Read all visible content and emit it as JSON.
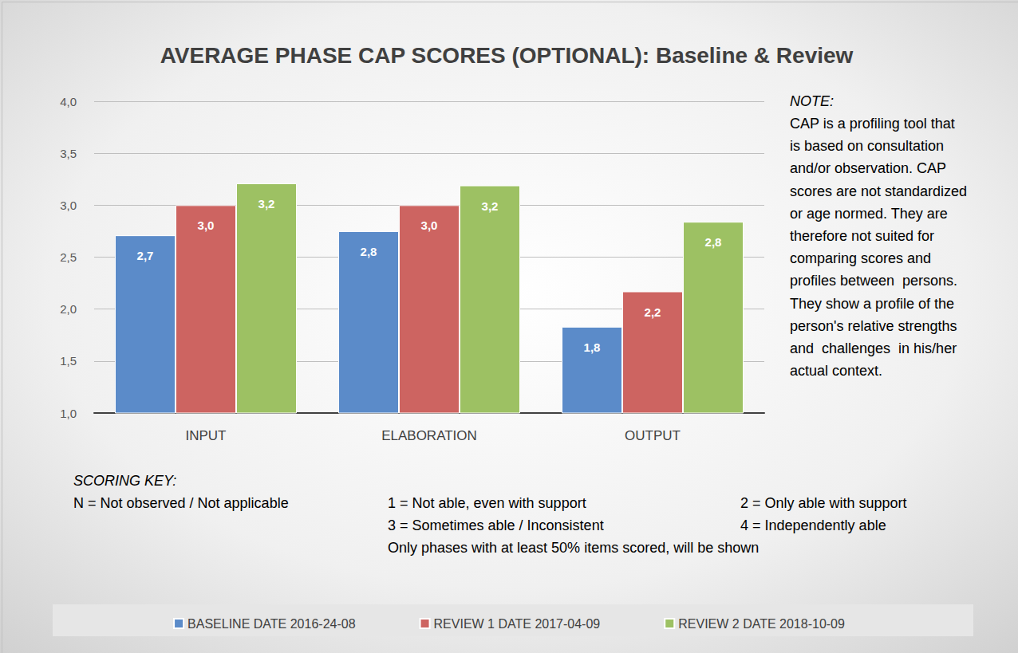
{
  "chart_data": {
    "type": "bar",
    "title": "AVERAGE PHASE CAP SCORES (OPTIONAL): Baseline & Review",
    "categories": [
      "INPUT",
      "ELABORATION",
      "OUTPUT"
    ],
    "series": [
      {
        "name": "BASELINE DATE 2016-24-08",
        "color": "#5B8BC9",
        "values": [
          2.71,
          2.75,
          1.83
        ],
        "value_labels": [
          "2,7",
          "2,8",
          "1,8"
        ]
      },
      {
        "name": "REVIEW 1 DATE 2017-04-09",
        "color": "#CD6461",
        "values": [
          3.0,
          3.0,
          2.17
        ],
        "value_labels": [
          "3,0",
          "3,0",
          "2,2"
        ]
      },
      {
        "name": "REVIEW 2 DATE 2018-10-09",
        "color": "#9DC163",
        "values": [
          3.21,
          3.19,
          2.84
        ],
        "value_labels": [
          "3,2",
          "3,2",
          "2,8"
        ]
      }
    ],
    "ylim": [
      1,
      4
    ],
    "yticks": [
      {
        "value": 1,
        "label": "1,0"
      },
      {
        "value": 1.5,
        "label": "1,5"
      },
      {
        "value": 2,
        "label": "2,0"
      },
      {
        "value": 2.5,
        "label": "2,5"
      },
      {
        "value": 3,
        "label": "3,0"
      },
      {
        "value": 3.5,
        "label": "3,5"
      },
      {
        "value": 4,
        "label": "4,0"
      }
    ],
    "grid": true,
    "data_labels": true,
    "legend": "bottom",
    "note": {
      "title": "NOTE:",
      "lines": [
        "CAP is a profiling tool that",
        "is based on consultation",
        "and/or observation. CAP",
        "scores are not standardized",
        "or age normed. They are",
        "therefore not suited for",
        "comparing scores and",
        "profiles between  persons.",
        "They show a profile of the",
        "person's relative strengths",
        "and  challenges  in his/her",
        "actual context."
      ]
    },
    "scoring_key": {
      "title": "SCORING KEY:",
      "items": [
        "N = Not observed / Not applicable",
        "1 = Not able, even with support",
        "2 = Only able with support",
        "3 = Sometimes able / Inconsistent",
        "4 = Independently able"
      ],
      "footnote": "Only phases with at least 50% items scored, will be shown"
    }
  }
}
